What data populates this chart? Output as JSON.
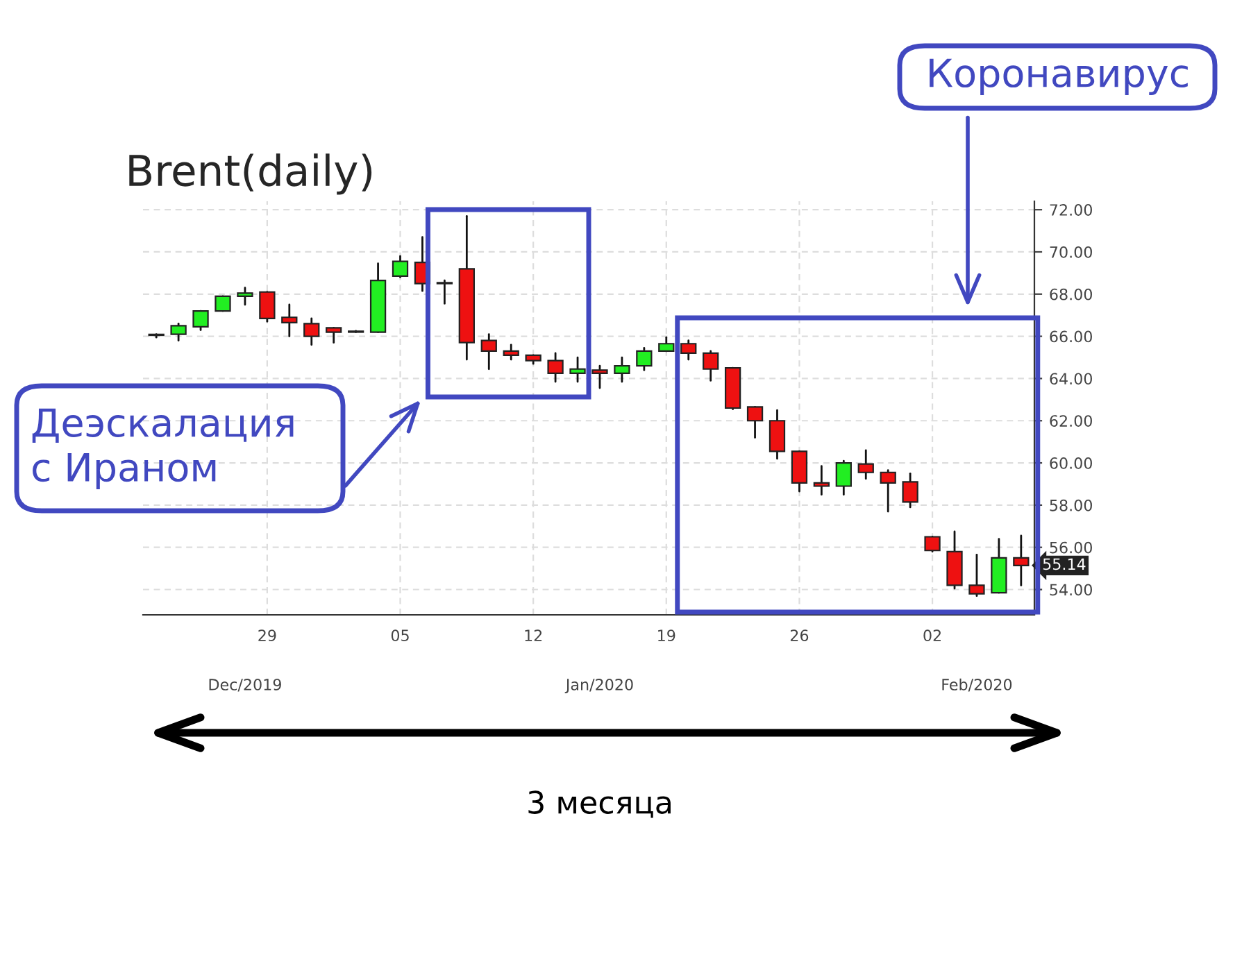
{
  "chart_data": {
    "type": "candlestick",
    "title": "Brent(daily)",
    "categories": [
      null,
      null,
      null,
      null,
      null,
      "29",
      null,
      null,
      null,
      null,
      null,
      "05",
      null,
      null,
      null,
      null,
      null,
      "12",
      null,
      null,
      null,
      null,
      null,
      "19",
      null,
      null,
      null,
      null,
      null,
      "26",
      null,
      null,
      null,
      null,
      null,
      "02",
      null,
      null,
      null,
      null
    ],
    "ohlc": [
      [
        66.05,
        66.1,
        65.95,
        66.05
      ],
      [
        66.1,
        66.6,
        65.8,
        66.5
      ],
      [
        66.45,
        67.2,
        66.3,
        67.2
      ],
      [
        67.2,
        67.9,
        67.2,
        67.9
      ],
      [
        67.9,
        68.3,
        67.5,
        68.05
      ],
      [
        68.1,
        68.1,
        66.7,
        66.85
      ],
      [
        66.9,
        67.5,
        66.0,
        66.65
      ],
      [
        66.6,
        66.85,
        65.6,
        66.0
      ],
      [
        66.4,
        66.4,
        65.7,
        66.2
      ],
      [
        66.2,
        66.25,
        66.2,
        66.2
      ],
      [
        66.2,
        69.45,
        66.2,
        68.65
      ],
      [
        68.85,
        69.8,
        68.8,
        69.55
      ],
      [
        69.5,
        70.7,
        68.15,
        68.5
      ],
      [
        68.5,
        68.65,
        67.55,
        68.5
      ],
      [
        69.2,
        71.7,
        64.9,
        65.7
      ],
      [
        65.8,
        66.1,
        64.45,
        65.3
      ],
      [
        65.3,
        65.6,
        64.9,
        65.1
      ],
      [
        65.1,
        65.1,
        64.7,
        64.85
      ],
      [
        64.85,
        65.2,
        63.85,
        64.25
      ],
      [
        64.25,
        65.0,
        63.85,
        64.45
      ],
      [
        64.4,
        64.6,
        63.55,
        64.25
      ],
      [
        64.25,
        65.0,
        63.85,
        64.6
      ],
      [
        64.6,
        65.45,
        64.4,
        65.3
      ],
      [
        65.3,
        65.95,
        65.3,
        65.65
      ],
      [
        65.65,
        65.8,
        64.9,
        65.2
      ],
      [
        65.2,
        65.3,
        63.9,
        64.45
      ],
      [
        64.5,
        64.5,
        62.55,
        62.6
      ],
      [
        62.65,
        62.65,
        61.2,
        62.0
      ],
      [
        62.0,
        62.5,
        60.2,
        60.55
      ],
      [
        60.55,
        60.55,
        58.65,
        59.05
      ],
      [
        59.05,
        59.85,
        58.5,
        58.9
      ],
      [
        58.9,
        60.1,
        58.5,
        60.0
      ],
      [
        59.95,
        60.6,
        59.25,
        59.55
      ],
      [
        59.55,
        59.65,
        57.7,
        59.05
      ],
      [
        59.1,
        59.5,
        57.9,
        58.15
      ],
      [
        56.5,
        56.5,
        55.8,
        55.85
      ],
      [
        55.8,
        56.75,
        54.05,
        54.2
      ],
      [
        54.2,
        55.65,
        53.7,
        53.8
      ],
      [
        53.85,
        56.4,
        53.85,
        55.5
      ],
      [
        55.5,
        56.55,
        54.2,
        55.14
      ]
    ],
    "colors": [
      "#ee1111",
      "#22ee22",
      "#22ee22",
      "#22ee22",
      "#22ee22",
      "#ee1111",
      "#ee1111",
      "#ee1111",
      "#ee1111",
      "#ee1111",
      "#22ee22",
      "#22ee22",
      "#ee1111",
      "#ee1111",
      "#ee1111",
      "#ee1111",
      "#ee1111",
      "#ee1111",
      "#ee1111",
      "#22ee22",
      "#ee1111",
      "#22ee22",
      "#22ee22",
      "#22ee22",
      "#ee1111",
      "#ee1111",
      "#ee1111",
      "#ee1111",
      "#ee1111",
      "#ee1111",
      "#ee1111",
      "#22ee22",
      "#ee1111",
      "#ee1111",
      "#ee1111",
      "#ee1111",
      "#ee1111",
      "#ee1111",
      "#22ee22",
      "#ee1111"
    ],
    "ylim": [
      52.8,
      72.4
    ],
    "yticks": [
      {
        "value": 54,
        "label": "54.00"
      },
      {
        "value": 56,
        "label": "56.00"
      },
      {
        "value": 58,
        "label": "58.00"
      },
      {
        "value": 60,
        "label": "60.00"
      },
      {
        "value": 62,
        "label": "62.00"
      },
      {
        "value": 64,
        "label": "64.00"
      },
      {
        "value": 66,
        "label": "66.00"
      },
      {
        "value": 68,
        "label": "68.00"
      },
      {
        "value": 70,
        "label": "70.00"
      },
      {
        "value": 72,
        "label": "72.00"
      }
    ],
    "grid": true,
    "annotations": [
      "Dec/2019",
      "Jan/2020",
      "Feb/2020",
      "55.14",
      "Деэскалация\nс Ираном",
      "Коронавирус",
      "3 месяца"
    ]
  }
}
